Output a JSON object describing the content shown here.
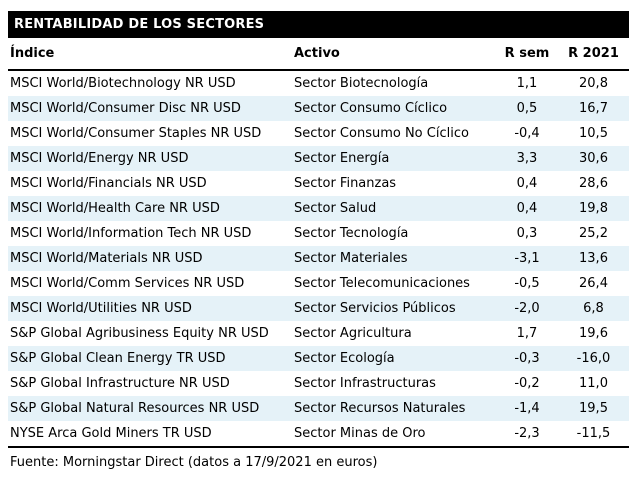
{
  "title": "RENTABILIDAD DE LOS SECTORES",
  "colors": {
    "title_bar_bg": "#000000",
    "title_bar_text": "#ffffff",
    "alt_row_bg": "#e5f2f8",
    "rule": "#000000",
    "body_text": "#000000"
  },
  "chart_data": {
    "type": "table",
    "title": "RENTABILIDAD DE LOS SECTORES",
    "columns": [
      "Índice",
      "Activo",
      "R sem",
      "R 2021"
    ],
    "rows": [
      [
        "MSCI World/Biotechnology NR USD",
        "Sector Biotecnología",
        "1,1",
        "20,8"
      ],
      [
        "MSCI World/Consumer Disc NR USD",
        "Sector Consumo Cíclico",
        "0,5",
        "16,7"
      ],
      [
        "MSCI World/Consumer Staples NR USD",
        "Sector Consumo No Cíclico",
        "-0,4",
        "10,5"
      ],
      [
        "MSCI World/Energy NR USD",
        "Sector Energía",
        "3,3",
        "30,6"
      ],
      [
        "MSCI World/Financials NR USD",
        "Sector Finanzas",
        "0,4",
        "28,6"
      ],
      [
        "MSCI World/Health Care NR USD",
        "Sector Salud",
        "0,4",
        "19,8"
      ],
      [
        "MSCI World/Information Tech NR USD",
        "Sector Tecnología",
        "0,3",
        "25,2"
      ],
      [
        "MSCI World/Materials NR USD",
        "Sector Materiales",
        "-3,1",
        "13,6"
      ],
      [
        "MSCI World/Comm Services NR USD",
        "Sector Telecomunicaciones",
        "-0,5",
        "26,4"
      ],
      [
        "MSCI World/Utilities NR USD",
        "Sector Servicios Públicos",
        "-2,0",
        "6,8"
      ],
      [
        "S&P Global Agribusiness Equity NR USD",
        "Sector Agricultura",
        "1,7",
        "19,6"
      ],
      [
        "S&P Global Clean Energy TR USD",
        "Sector Ecología",
        "-0,3",
        "-16,0"
      ],
      [
        "S&P Global Infrastructure NR USD",
        "Sector Infrastructuras",
        "-0,2",
        "11,0"
      ],
      [
        "S&P Global Natural Resources NR USD",
        "Sector Recursos Naturales",
        "-1,4",
        "19,5"
      ],
      [
        "NYSE Arca Gold Miners TR USD",
        "Sector Minas de Oro",
        "-2,3",
        "-11,5"
      ]
    ],
    "source": "Fuente: Morningstar Direct (datos a 17/9/2021 en euros)"
  }
}
